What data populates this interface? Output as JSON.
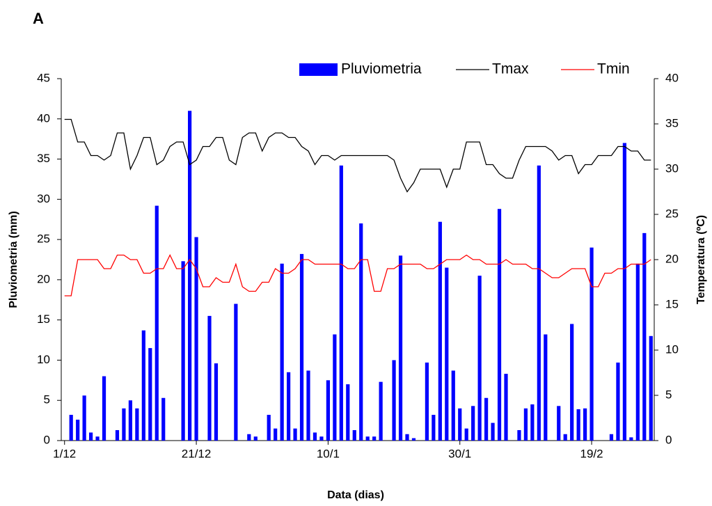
{
  "chart_data": {
    "type": "bar",
    "panel_label": "A",
    "x_label": "Data (dias)",
    "y_label": "Pluviometria (mm)",
    "y2_label": "Temperatura (ºC)",
    "categories": [
      "1/12",
      null,
      null,
      null,
      null,
      null,
      null,
      null,
      null,
      null,
      null,
      null,
      null,
      null,
      null,
      null,
      null,
      null,
      null,
      null,
      "21/12",
      null,
      null,
      null,
      null,
      null,
      null,
      null,
      null,
      null,
      null,
      null,
      null,
      null,
      null,
      null,
      null,
      null,
      null,
      null,
      "10/1",
      null,
      null,
      null,
      null,
      null,
      null,
      null,
      null,
      null,
      null,
      null,
      null,
      null,
      null,
      null,
      null,
      null,
      null,
      null,
      "30/1",
      null,
      null,
      null,
      null,
      null,
      null,
      null,
      null,
      null,
      null,
      null,
      null,
      null,
      null,
      null,
      null,
      null,
      null,
      null,
      "19/2",
      null,
      null,
      null,
      null,
      null,
      null,
      null,
      null,
      null
    ],
    "series": [
      {
        "name": "Pluviometria",
        "type": "bar",
        "color": "#0000ff",
        "values": [
          0,
          3.2,
          2.6,
          5.6,
          1,
          0.5,
          8,
          0,
          1.3,
          4,
          5,
          4,
          13.7,
          11.5,
          29.2,
          5.3,
          0,
          0,
          22.3,
          41,
          25.3,
          0,
          15.5,
          9.6,
          0,
          0,
          17,
          0,
          0.8,
          0.5,
          0,
          3.2,
          1.5,
          22,
          8.5,
          1.5,
          23.2,
          8.7,
          1,
          0.5,
          7.5,
          13.2,
          34.2,
          7,
          1.3,
          27,
          0.5,
          0.5,
          7.3,
          0,
          10,
          23,
          0.8,
          0.3,
          0,
          9.7,
          3.2,
          27.2,
          21.5,
          8.7,
          4,
          1.5,
          4.3,
          20.5,
          5.3,
          2.2,
          28.8,
          8.3,
          0,
          1.3,
          4,
          4.5,
          34.2,
          13.2,
          0,
          4.3,
          0.8,
          14.5,
          3.9,
          4,
          24,
          0,
          0,
          0.8,
          9.7,
          37,
          0.4,
          22,
          25.8,
          13
        ]
      },
      {
        "name": "Tmax",
        "type": "line",
        "axis": "y2",
        "color": "#000000",
        "values": [
          35.5,
          35.5,
          33,
          33,
          31.5,
          31.5,
          31,
          31.5,
          34,
          34,
          30,
          31.5,
          33.5,
          33.5,
          30.5,
          31,
          32.5,
          33,
          33,
          30.5,
          31,
          32.5,
          32.5,
          33.5,
          33.5,
          31,
          30.5,
          33.5,
          34,
          34,
          32,
          33.5,
          34,
          34,
          33.5,
          33.5,
          32.5,
          32,
          30.5,
          31.5,
          31.5,
          31,
          31.5,
          31.5,
          31.5,
          31.5,
          31.5,
          31.5,
          31.5,
          31.5,
          31,
          29,
          27.5,
          28.5,
          30,
          30,
          30,
          30,
          28,
          30,
          30,
          33,
          33,
          33,
          30.5,
          30.5,
          29.5,
          29,
          29,
          31,
          32.5,
          32.5,
          32.5,
          32.5,
          32,
          31,
          31.5,
          31.5,
          29.5,
          30.5,
          30.5,
          31.5,
          31.5,
          31.5,
          32.5,
          32.5,
          32,
          32,
          31,
          31
        ]
      },
      {
        "name": "Tmin",
        "type": "line",
        "axis": "y2",
        "color": "#ff0000",
        "values": [
          16,
          16,
          20,
          20,
          20,
          20,
          19,
          19,
          20.5,
          20.5,
          20,
          20,
          18.5,
          18.5,
          19,
          19,
          20.5,
          19,
          19,
          20,
          19,
          17,
          17,
          18,
          17.5,
          17.5,
          19.5,
          17,
          16.5,
          16.5,
          17.5,
          17.5,
          19,
          18.5,
          18.5,
          19,
          20,
          20,
          19.5,
          19.5,
          19.5,
          19.5,
          19.5,
          19,
          19,
          20,
          20,
          16.5,
          16.5,
          19,
          19,
          19.5,
          19.5,
          19.5,
          19.5,
          19,
          19,
          19.5,
          20,
          20,
          20,
          20.5,
          20,
          20,
          19.5,
          19.5,
          19.5,
          20,
          19.5,
          19.5,
          19.5,
          19,
          19,
          18.5,
          18,
          18,
          18.5,
          19,
          19,
          19,
          17,
          17,
          18.5,
          18.5,
          19,
          19,
          19.5,
          19.5,
          19.5,
          20
        ]
      }
    ],
    "ylim": [
      0,
      45
    ],
    "yticks": [
      0,
      5,
      10,
      15,
      20,
      25,
      30,
      35,
      40,
      45
    ],
    "y2lim": [
      0,
      40
    ],
    "y2ticks": [
      0,
      5,
      10,
      15,
      20,
      25,
      30,
      35,
      40
    ],
    "legend": "top-right"
  }
}
